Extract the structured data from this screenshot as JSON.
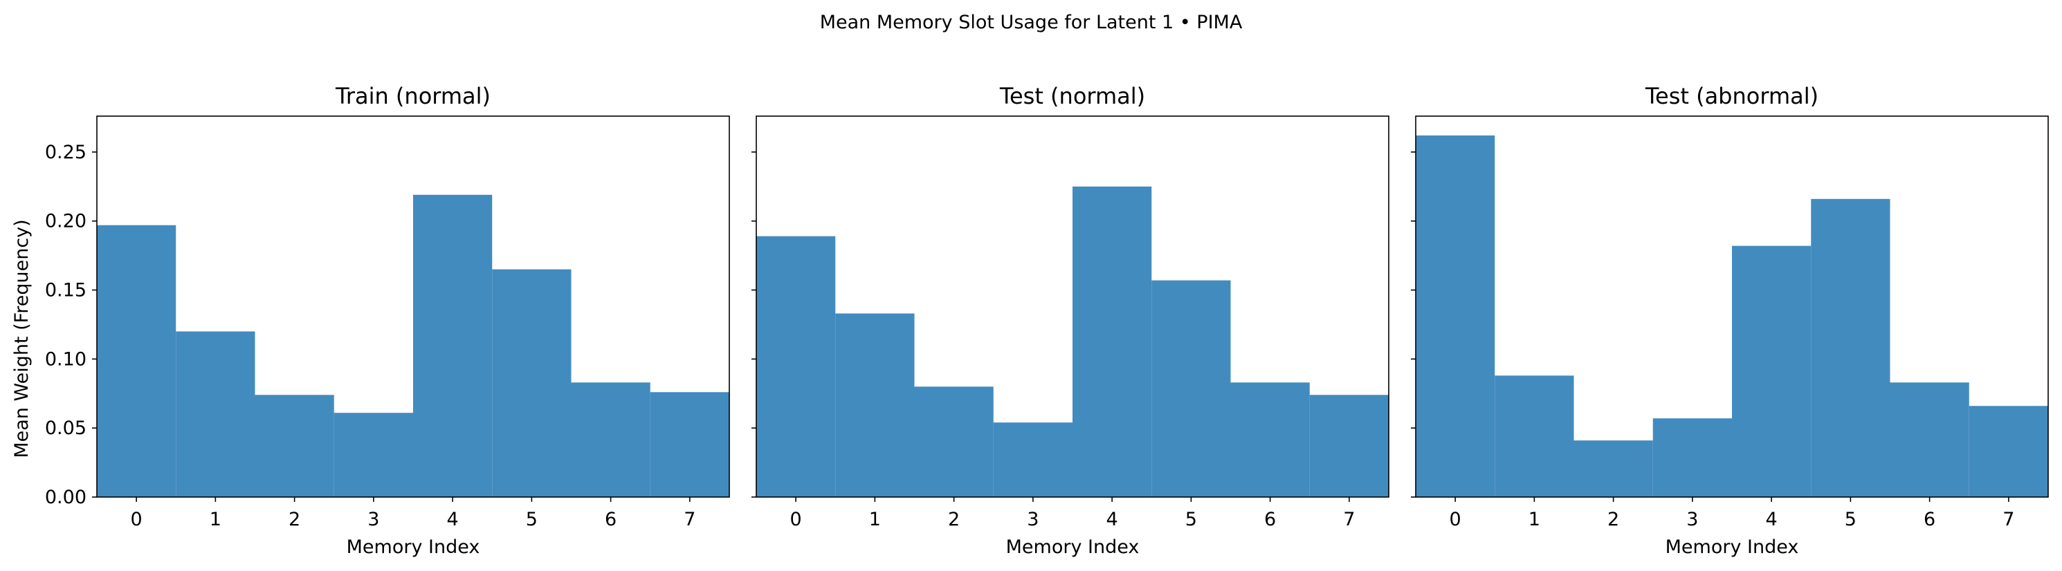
{
  "figure": {
    "suptitle": "Mean Memory Slot Usage for Latent 1 • PIMA",
    "ylabel": "Mean Weight (Frequency)"
  },
  "chart_data": [
    {
      "type": "bar",
      "title": "Train (normal)",
      "xlabel": "Memory Index",
      "ylabel": "Mean Weight (Frequency)",
      "categories": [
        "0",
        "1",
        "2",
        "3",
        "4",
        "5",
        "6",
        "7"
      ],
      "values": [
        0.197,
        0.12,
        0.074,
        0.061,
        0.219,
        0.165,
        0.083,
        0.076
      ],
      "ylim": [
        0,
        0.276
      ],
      "yticks": [
        "0.00",
        "0.05",
        "0.10",
        "0.15",
        "0.20",
        "0.25"
      ],
      "color": "#428bbf",
      "grid": false
    },
    {
      "type": "bar",
      "title": "Test (normal)",
      "xlabel": "Memory Index",
      "categories": [
        "0",
        "1",
        "2",
        "3",
        "4",
        "5",
        "6",
        "7"
      ],
      "values": [
        0.189,
        0.133,
        0.08,
        0.054,
        0.225,
        0.157,
        0.083,
        0.074
      ],
      "ylim": [
        0,
        0.276
      ],
      "color": "#428bbf",
      "grid": false
    },
    {
      "type": "bar",
      "title": "Test (abnormal)",
      "xlabel": "Memory Index",
      "categories": [
        "0",
        "1",
        "2",
        "3",
        "4",
        "5",
        "6",
        "7"
      ],
      "values": [
        0.262,
        0.088,
        0.041,
        0.057,
        0.182,
        0.216,
        0.083,
        0.066
      ],
      "ylim": [
        0,
        0.276
      ],
      "color": "#428bbf",
      "grid": false
    }
  ]
}
